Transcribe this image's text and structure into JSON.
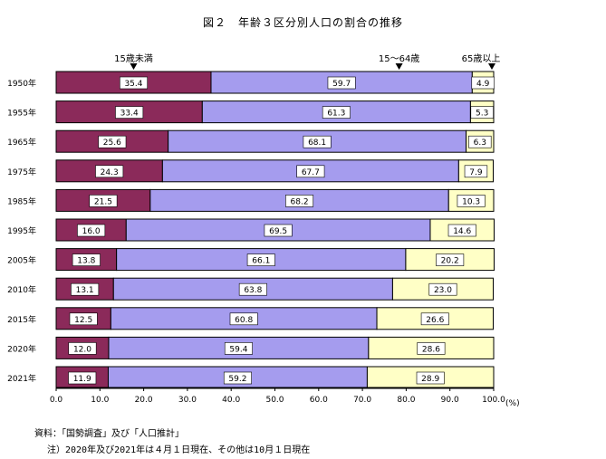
{
  "chart_data": {
    "type": "bar",
    "orientation": "horizontal",
    "stacked": true,
    "title": "図２　年齢３区分別人口の割合の推移",
    "categories": [
      "1950年",
      "1955年",
      "1965年",
      "1975年",
      "1985年",
      "1995年",
      "2005年",
      "2010年",
      "2015年",
      "2020年",
      "2021年"
    ],
    "series": [
      {
        "name": "15歳未満",
        "color": "#8b2a5a",
        "values": [
          35.4,
          33.4,
          25.6,
          24.3,
          21.5,
          16.0,
          13.8,
          13.1,
          12.5,
          12.0,
          11.9
        ],
        "labels": [
          "35.4",
          "33.4",
          "25.6",
          "24.3",
          "21.5",
          "16.0",
          "13.8",
          "13.1",
          "12.5",
          "12.0",
          "11.9"
        ]
      },
      {
        "name": "15～64歳",
        "color": "#a59cee",
        "values": [
          59.7,
          61.3,
          68.1,
          67.7,
          68.2,
          69.5,
          66.1,
          63.8,
          60.8,
          59.4,
          59.2
        ],
        "labels": [
          "59.7",
          "61.3",
          "68.1",
          "67.7",
          "68.2",
          "69.5",
          "66.1",
          "63.8",
          "60.8",
          "59.4",
          "59.2"
        ]
      },
      {
        "name": "65歳以上",
        "color": "#ffffc6",
        "values": [
          4.9,
          5.3,
          6.3,
          7.9,
          10.3,
          14.6,
          20.2,
          23.0,
          26.6,
          28.6,
          28.9
        ],
        "labels": [
          "4.9",
          "5.3",
          "6.3",
          "7.9",
          "10.3",
          "14.6",
          "20.2",
          "23.0",
          "26.6",
          "28.6",
          "28.9"
        ]
      }
    ],
    "xlim": [
      0,
      100
    ],
    "xticks": [
      "0.0",
      "10.0",
      "20.0",
      "30.0",
      "40.0",
      "50.0",
      "60.0",
      "70.0",
      "80.0",
      "90.0",
      "100.0"
    ],
    "xunit": "(%)",
    "legend_position": "top, arrows above bars"
  },
  "notes": {
    "source": "資料：「国勢調査」及び「人口推計」",
    "footnote": "注）2020年及び2021年は４月１日現在、その他は10月１日現在"
  }
}
